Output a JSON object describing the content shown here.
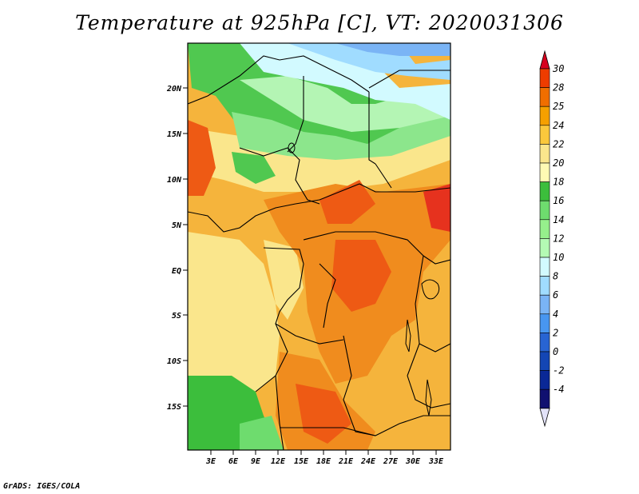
{
  "title": "Temperature at 925hPa [C], VT: 2020031306",
  "credit": "GrADS: IGES/COLA",
  "map": {
    "lat_labels": [
      "20N",
      "15N",
      "10N",
      "5N",
      "EQ",
      "5S",
      "10S",
      "15S"
    ],
    "lon_labels": [
      "3E",
      "6E",
      "9E",
      "12E",
      "15E",
      "18E",
      "21E",
      "24E",
      "27E",
      "30E",
      "33E"
    ]
  },
  "colorbar": {
    "labels": [
      "30",
      "28",
      "25",
      "24",
      "22",
      "20",
      "18",
      "16",
      "14",
      "12",
      "10",
      "8",
      "6",
      "4",
      "2",
      "0",
      "-2",
      "-4"
    ],
    "colors": [
      "#d7001e",
      "#ee3c00",
      "#f06e00",
      "#f5a000",
      "#fac83c",
      "#fae68c",
      "#fffab4",
      "#3cbe3c",
      "#6edc6e",
      "#96f08c",
      "#b4fab4",
      "#d2faff",
      "#a0dcff",
      "#7ab4f5",
      "#4896f0",
      "#2864d2",
      "#1446b4",
      "#0a2896",
      "#101070",
      "#e2e2f8"
    ]
  }
}
